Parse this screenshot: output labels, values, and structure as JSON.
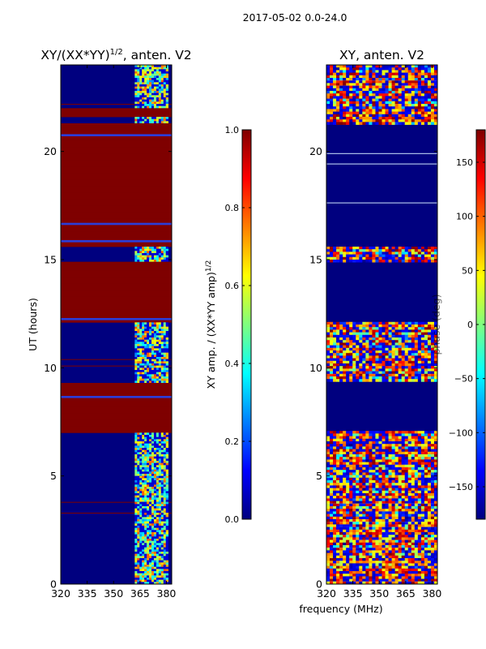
{
  "figure": {
    "suptitle": "2017-05-02 0.0-24.0",
    "xlabel": "frequency (MHz)"
  },
  "colors": {
    "jet_stops": [
      "#00007f",
      "#0000ff",
      "#007fff",
      "#00ffff",
      "#7fff7f",
      "#ffff00",
      "#ff7f00",
      "#ff0000",
      "#7f0000"
    ]
  },
  "chart_data": [
    {
      "type": "heatmap",
      "title_main": "XY/(XX*YY)",
      "title_sup": "1/2",
      "title_tail": ", anten. V2",
      "xlabel": "",
      "ylabel": "UT (hours)",
      "xlim": [
        320,
        383
      ],
      "ylim": [
        0,
        24
      ],
      "xticks": [
        320,
        335,
        350,
        365,
        380
      ],
      "yticks": [
        0,
        5,
        10,
        15,
        20
      ],
      "colorbar": {
        "label_main": "XY amp. / (XX*YY amp)",
        "label_sup": "1/2",
        "range": [
          0.0,
          1.0
        ],
        "ticks": [
          "0.0",
          "0.2",
          "0.4",
          "0.6",
          "0.8",
          "1.0"
        ],
        "tick_values": [
          0.0,
          0.2,
          0.4,
          0.6,
          0.8,
          1.0
        ]
      },
      "saturated_intervals_hours": [
        [
          7.05,
          9.35
        ],
        [
          12.15,
          14.9
        ],
        [
          15.6,
          21.3
        ],
        [
          21.65,
          22.05
        ]
      ],
      "low_intervals_hours": [
        [
          0,
          7.05
        ],
        [
          9.35,
          12.15
        ],
        [
          14.9,
          15.6
        ],
        [
          21.3,
          21.65
        ],
        [
          22.05,
          24
        ]
      ],
      "bright_band_mhz": [
        362,
        381
      ]
    },
    {
      "type": "heatmap",
      "title_main": "XY, anten. V2",
      "xlabel": "",
      "ylabel": "",
      "xlim": [
        320,
        383
      ],
      "ylim": [
        0,
        24
      ],
      "xticks": [
        320,
        335,
        350,
        365,
        380
      ],
      "yticks": [
        0,
        5,
        10,
        15,
        20
      ],
      "colorbar": {
        "label_main": "phase (deg)",
        "range": [
          -180,
          180
        ],
        "ticks": [
          "−150",
          "−100",
          "−50",
          "0",
          "50",
          "100",
          "150"
        ],
        "tick_values": [
          -150,
          -100,
          -50,
          0,
          50,
          100,
          150
        ]
      },
      "flat_intervals_hours": [
        [
          7.05,
          9.35
        ],
        [
          12.15,
          14.9
        ],
        [
          15.6,
          21.3
        ]
      ],
      "noisy_intervals_hours": [
        [
          0,
          7.05
        ],
        [
          9.35,
          12.15
        ],
        [
          14.9,
          15.6
        ],
        [
          21.3,
          24
        ]
      ]
    }
  ]
}
